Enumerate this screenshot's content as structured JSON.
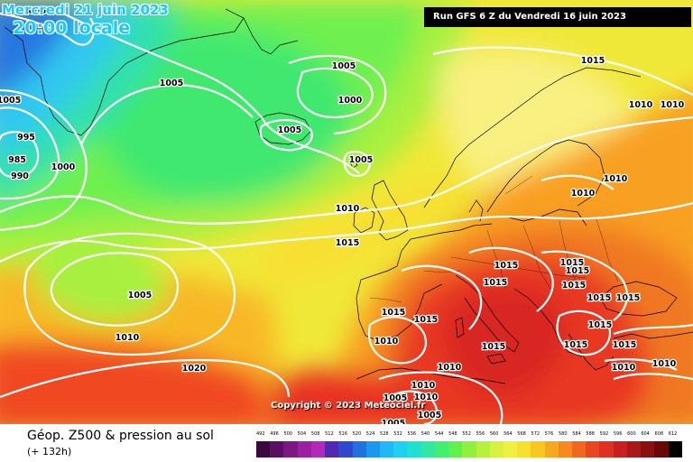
{
  "header": {
    "date": "Mercredi 21 juin 2023",
    "time": "20:00 locale",
    "run": "Run GFS 6 Z du Vendredi 16 juin 2023"
  },
  "copyright": "Copyright © 2023 Meteociel.fr",
  "footer": {
    "title": "Géop. Z500 & pression au sol",
    "subtitle": "(+ 132h)"
  },
  "scale": {
    "labels": [
      "492",
      "496",
      "500",
      "504",
      "508",
      "512",
      "516",
      "520",
      "524",
      "528",
      "532",
      "536",
      "540",
      "544",
      "548",
      "552",
      "556",
      "560",
      "564",
      "568",
      "572",
      "576",
      "580",
      "584",
      "588",
      "592",
      "596",
      "600",
      "604",
      "608",
      "612"
    ],
    "colors": [
      "#3a0a3e",
      "#5a1060",
      "#7a1a80",
      "#9a20a0",
      "#b428b8",
      "#5028b4",
      "#3048d0",
      "#2070e0",
      "#1a98f0",
      "#20b8f8",
      "#20d0f0",
      "#20e0d0",
      "#30e8a0",
      "#40f070",
      "#60f050",
      "#90f040",
      "#b8f040",
      "#d8f040",
      "#f0f040",
      "#f8e030",
      "#f8c820",
      "#f8a820",
      "#f88820",
      "#f06820",
      "#e84820",
      "#e03020",
      "#c82020",
      "#a81818",
      "#881010",
      "#680808",
      "#000000"
    ]
  },
  "isobars": [
    {
      "v": "1000",
      "pos": "greenland-nw"
    },
    {
      "v": "1005",
      "pos": "west-edge"
    },
    {
      "v": "995",
      "pos": "low-1"
    },
    {
      "v": "985",
      "pos": "low-2"
    },
    {
      "v": "990",
      "pos": "low-3"
    },
    {
      "v": "1000",
      "pos": "low-ring"
    },
    {
      "v": "1005",
      "pos": "denmark-strait"
    },
    {
      "v": "1005",
      "pos": "north-atlantic"
    },
    {
      "v": "1000",
      "pos": "norwegian-sea-low"
    },
    {
      "v": "1005",
      "pos": "iceland"
    },
    {
      "v": "1005",
      "pos": "faroes"
    },
    {
      "v": "1010",
      "pos": "uk-north"
    },
    {
      "v": "1015",
      "pos": "uk-south"
    },
    {
      "v": "1015",
      "pos": "norway"
    },
    {
      "v": "1010",
      "pos": "finland"
    },
    {
      "v": "1010",
      "pos": "russia-north"
    },
    {
      "v": "1010",
      "pos": "baltic"
    },
    {
      "v": "1010",
      "pos": "belarus"
    },
    {
      "v": "1005",
      "pos": "mid-atlantic-low"
    },
    {
      "v": "1010",
      "pos": "azores-north"
    },
    {
      "v": "1020",
      "pos": "azores"
    },
    {
      "v": "1015",
      "pos": "spain-north"
    },
    {
      "v": "1015",
      "pos": "spain-east"
    },
    {
      "v": "1010",
      "pos": "spain-west"
    },
    {
      "v": "1010",
      "pos": "spain-south"
    },
    {
      "v": "1015",
      "pos": "italy"
    },
    {
      "v": "1015",
      "pos": "alps"
    },
    {
      "v": "1015",
      "pos": "austria"
    },
    {
      "v": "1015",
      "pos": "hungary"
    },
    {
      "v": "1015",
      "pos": "balkans-1"
    },
    {
      "v": "1015",
      "pos": "balkans-2"
    },
    {
      "v": "1015",
      "pos": "romania"
    },
    {
      "v": "1015",
      "pos": "ukraine-south"
    },
    {
      "v": "1015",
      "pos": "greece-1"
    },
    {
      "v": "1015",
      "pos": "greece-2"
    },
    {
      "v": "1015",
      "pos": "turkey"
    },
    {
      "v": "1010",
      "pos": "aegean"
    },
    {
      "v": "1010",
      "pos": "turkey-east"
    },
    {
      "v": "1010",
      "pos": "sardinia"
    },
    {
      "v": "1010",
      "pos": "algeria-1"
    },
    {
      "v": "1005",
      "pos": "algeria-2"
    },
    {
      "v": "1005",
      "pos": "algeria-3"
    },
    {
      "v": "1005",
      "pos": "morocco"
    }
  ]
}
